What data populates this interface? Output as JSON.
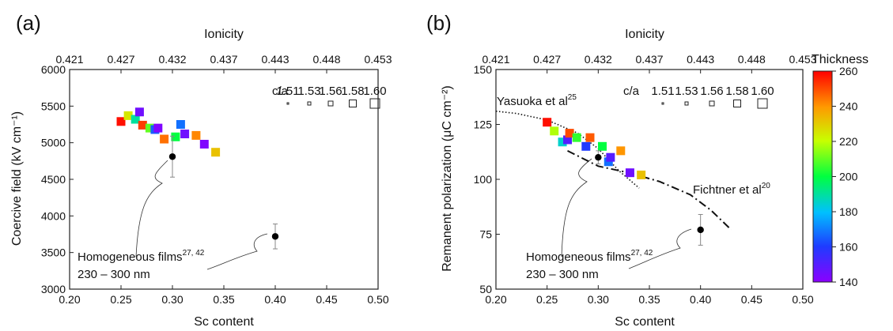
{
  "chart_data": [
    {
      "type": "scatter",
      "panel_label": "(a)",
      "xlabel": "Sc content",
      "ylabel": "Coercive field (kV cm⁻¹)",
      "top_xlabel": "Ionicity",
      "xlim": [
        0.2,
        0.5
      ],
      "ylim": [
        3000,
        6000
      ],
      "x_ticks": [
        "0.20",
        "0.25",
        "0.30",
        "0.35",
        "0.40",
        "0.45",
        "0.50"
      ],
      "y_ticks": [
        "3000",
        "3500",
        "4000",
        "4500",
        "5000",
        "5500",
        "6000"
      ],
      "top_ticks": [
        "0.421",
        "0.427",
        "0.432",
        "0.437",
        "0.443",
        "0.448",
        "0.453"
      ],
      "ca_legend": {
        "label": "c/a",
        "values": [
          "1.51",
          "1.53",
          "1.56",
          "1.58",
          "1.60"
        ]
      },
      "series": [
        {
          "marker": "square",
          "points": [
            {
              "x": 0.25,
              "y": 5290,
              "t": 258
            },
            {
              "x": 0.257,
              "y": 5370,
              "t": 225
            },
            {
              "x": 0.264,
              "y": 5320,
              "t": 190
            },
            {
              "x": 0.268,
              "y": 5420,
              "t": 145
            },
            {
              "x": 0.271,
              "y": 5240,
              "t": 252
            },
            {
              "x": 0.278,
              "y": 5200,
              "t": 210
            },
            {
              "x": 0.283,
              "y": 5180,
              "t": 165
            },
            {
              "x": 0.286,
              "y": 5200,
              "t": 142
            },
            {
              "x": 0.292,
              "y": 5050,
              "t": 245
            },
            {
              "x": 0.303,
              "y": 5080,
              "t": 200
            },
            {
              "x": 0.308,
              "y": 5250,
              "t": 168
            },
            {
              "x": 0.312,
              "y": 5120,
              "t": 145
            },
            {
              "x": 0.323,
              "y": 5100,
              "t": 242
            },
            {
              "x": 0.331,
              "y": 4980,
              "t": 142
            },
            {
              "x": 0.342,
              "y": 4870,
              "t": 232
            }
          ]
        },
        {
          "name": "Homogeneous films",
          "marker": "circle",
          "points": [
            {
              "x": 0.3,
              "y": 4810,
              "err": 280
            },
            {
              "x": 0.4,
              "y": 3720,
              "err": 170
            }
          ]
        }
      ],
      "annotation": {
        "text": "Homogeneous films",
        "superscript": "27, 42",
        "line2": "230 – 300 nm"
      }
    },
    {
      "type": "scatter",
      "panel_label": "(b)",
      "xlabel": "Sc content",
      "ylabel": "Remanent polarization (μC cm⁻²)",
      "top_xlabel": "Ionicity",
      "xlim": [
        0.2,
        0.5
      ],
      "ylim": [
        50,
        150
      ],
      "x_ticks": [
        "0.20",
        "0.25",
        "0.30",
        "0.35",
        "0.40",
        "0.45",
        "0.50"
      ],
      "y_ticks": [
        "50",
        "75",
        "100",
        "125",
        "150"
      ],
      "top_ticks": [
        "0.421",
        "0.427",
        "0.432",
        "0.437",
        "0.443",
        "0.448",
        "0.453"
      ],
      "ca_legend": {
        "label": "c/a",
        "values": [
          "1.51",
          "1.53",
          "1.56",
          "1.58",
          "1.60"
        ]
      },
      "series": [
        {
          "marker": "square",
          "points": [
            {
              "x": 0.25,
              "y": 126,
              "t": 258
            },
            {
              "x": 0.257,
              "y": 122,
              "t": 218
            },
            {
              "x": 0.265,
              "y": 117,
              "t": 185
            },
            {
              "x": 0.27,
              "y": 118,
              "t": 150
            },
            {
              "x": 0.272,
              "y": 121,
              "t": 250
            },
            {
              "x": 0.279,
              "y": 119,
              "t": 205
            },
            {
              "x": 0.288,
              "y": 115,
              "t": 160
            },
            {
              "x": 0.292,
              "y": 119,
              "t": 248
            },
            {
              "x": 0.304,
              "y": 115,
              "t": 200
            },
            {
              "x": 0.31,
              "y": 108,
              "t": 168
            },
            {
              "x": 0.312,
              "y": 110,
              "t": 150
            },
            {
              "x": 0.322,
              "y": 113,
              "t": 240
            },
            {
              "x": 0.331,
              "y": 103,
              "t": 145
            },
            {
              "x": 0.342,
              "y": 102,
              "t": 232
            }
          ]
        },
        {
          "name": "Homogeneous films",
          "marker": "circle",
          "points": [
            {
              "x": 0.3,
              "y": 110,
              "err": 3
            },
            {
              "x": 0.4,
              "y": 77,
              "err": 7
            }
          ]
        }
      ],
      "trend_lines": [
        {
          "name": "Yasuoka et al",
          "superscript": "25",
          "style": "dotted",
          "x": [
            0.2,
            0.22,
            0.25,
            0.28,
            0.3,
            0.32,
            0.34
          ],
          "y": [
            131,
            130,
            127,
            121,
            114,
            104,
            96
          ]
        },
        {
          "name": "Fichtner et al",
          "superscript": "20",
          "style": "dashdot",
          "x": [
            0.27,
            0.3,
            0.33,
            0.36,
            0.39,
            0.41,
            0.43
          ],
          "y": [
            113,
            106,
            103,
            99,
            93,
            86,
            77
          ]
        }
      ],
      "annotation": {
        "text": "Homogeneous films",
        "superscript": "27, 42",
        "line2": "230 – 300 nm"
      },
      "colorbar": {
        "title": "Thickness",
        "min": 140,
        "max": 260,
        "ticks": [
          "260",
          "240",
          "220",
          "200",
          "180",
          "160",
          "140"
        ]
      }
    }
  ]
}
